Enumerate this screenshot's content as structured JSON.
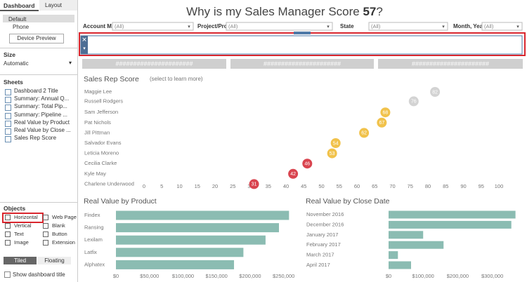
{
  "sidebar": {
    "tabs": [
      "Dashboard",
      "Layout"
    ],
    "devices": [
      "Default",
      "Phone"
    ],
    "device_preview": "Device Preview",
    "size_heading": "Size",
    "size_value": "Automatic",
    "sheets_heading": "Sheets",
    "sheets": [
      "Dashboard 2 Title",
      "Summary: Annual Q...",
      "Summary: Total Pip...",
      "Summary: Pipeline ...",
      "Real Value by Product",
      "Real Value by Close ...",
      "Sales Rep Score"
    ],
    "objects_heading": "Objects",
    "objects": [
      "Horizontal",
      "Web Page",
      "Vertical",
      "Blank",
      "Text",
      "Button",
      "Image",
      "Extension"
    ],
    "layout_modes": [
      "Tiled",
      "Floating"
    ],
    "show_title": "Show dashboard title"
  },
  "dashboard": {
    "title": "Why is my Sales Manager Score",
    "score": 57,
    "title_end": "?",
    "filters": [
      {
        "label": "Account M..",
        "value": "(All)"
      },
      {
        "label": "Project/Pro..",
        "value": "(All)"
      },
      {
        "label": "State",
        "value": "(All)"
      },
      {
        "label": "Month, Yea..",
        "value": "(All)"
      }
    ],
    "placeholders": [
      "######################",
      "######################",
      "######################"
    ],
    "charts": [
      {
        "type": "dot",
        "title": "Sales Rep Score",
        "subtitle": "(select to learn more)",
        "categories": [
          "Maggie Lee",
          "Russell Rodgers",
          "Sam Jefferson",
          "Pat Nichols",
          "Jill Pittman",
          "Salvador Evans",
          "Leticia Moreno",
          "Cecilia Clarke",
          "Kyle May",
          "Charlene Underwood"
        ],
        "values": [
          82,
          76,
          68,
          67,
          62,
          54,
          53,
          46,
          42,
          31
        ],
        "colors": [
          "#d3d3d3",
          "#d3d3d3",
          "#f1c24b",
          "#f1c24b",
          "#f1c24b",
          "#f1c24b",
          "#f1c24b",
          "#d9444f",
          "#d9444f",
          "#d9444f"
        ],
        "xlim": [
          0,
          100
        ],
        "xticks": [
          0,
          5,
          10,
          15,
          20,
          25,
          30,
          35,
          40,
          45,
          50,
          55,
          60,
          65,
          70,
          75,
          80,
          85,
          90,
          95,
          100
        ]
      },
      {
        "type": "bar",
        "title": "Real Value by Product",
        "categories": [
          "Findex",
          "Ransing",
          "Lexilam",
          "Latfix",
          "Alphatex"
        ],
        "values": [
          258000,
          243000,
          223000,
          190000,
          176000
        ],
        "color": "#8bbcb2",
        "xlim": [
          0,
          265000
        ],
        "xticks": [
          {
            "value": 0,
            "label": "$0"
          },
          {
            "value": 50000,
            "label": "$50,000"
          },
          {
            "value": 100000,
            "label": "$100,000"
          },
          {
            "value": 150000,
            "label": "$150,000"
          },
          {
            "value": 200000,
            "label": "$200,000"
          },
          {
            "value": 250000,
            "label": "$250,000"
          }
        ]
      },
      {
        "type": "bar",
        "title": "Real Value by Close Date",
        "categories": [
          "November 2016",
          "December 2016",
          "January 2017",
          "February 2017",
          "March 2017",
          "April 2017"
        ],
        "values": [
          367000,
          355000,
          100000,
          159000,
          27000,
          65000
        ],
        "color": "#8bbcb2",
        "xlim": [
          0,
          380000
        ],
        "xticks": [
          {
            "value": 0,
            "label": "$0"
          },
          {
            "value": 100000,
            "label": "$100,000"
          },
          {
            "value": 200000,
            "label": "$200,000"
          },
          {
            "value": 300000,
            "label": "$300,000"
          }
        ]
      }
    ]
  }
}
